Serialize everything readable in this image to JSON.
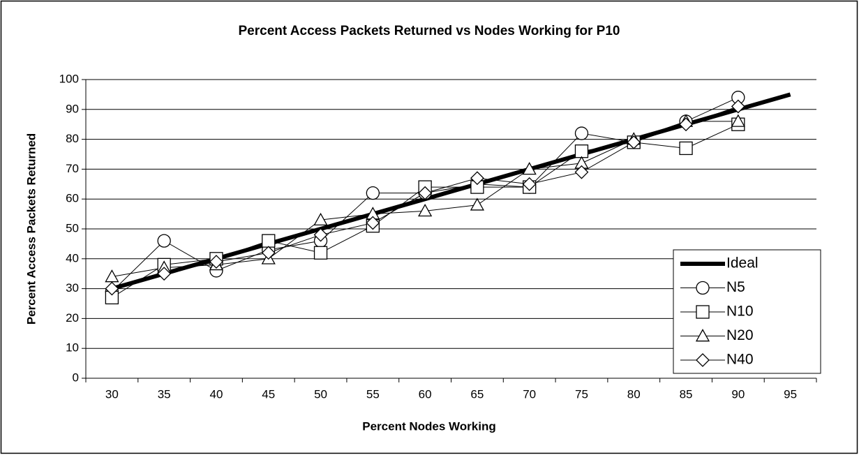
{
  "chart_data": {
    "type": "line",
    "title": "Percent Access Packets Returned vs Nodes Working for P10",
    "x_label": "Percent Nodes Working",
    "y_label": "Percent Access Packets Returned",
    "categories": [
      30,
      35,
      40,
      45,
      50,
      55,
      60,
      65,
      70,
      75,
      80,
      85,
      90,
      95
    ],
    "series": [
      {
        "name": "Ideal",
        "color": "#000000",
        "marker": "none",
        "values": [
          30,
          35,
          40,
          45,
          50,
          55,
          60,
          65,
          70,
          75,
          80,
          85,
          90,
          95
        ]
      },
      {
        "name": "N5",
        "color": "#000000",
        "marker": "circle",
        "values": [
          29,
          46,
          36,
          43,
          46,
          62,
          62,
          65,
          64,
          82,
          79,
          86,
          94,
          null
        ]
      },
      {
        "name": "N10",
        "color": "#000000",
        "marker": "square",
        "values": [
          27,
          38,
          40,
          46,
          42,
          51,
          64,
          64,
          64,
          76,
          79,
          77,
          85,
          null
        ]
      },
      {
        "name": "N20",
        "color": "#000000",
        "marker": "triangle",
        "values": [
          34,
          37,
          38,
          40,
          53,
          55,
          56,
          58,
          70,
          72,
          80,
          86,
          86,
          null
        ]
      },
      {
        "name": "N40",
        "color": "#000000",
        "marker": "diamond",
        "values": [
          30,
          35,
          39,
          42,
          48,
          52,
          62,
          67,
          65,
          69,
          79,
          85,
          91,
          null
        ]
      }
    ],
    "ylim": [
      0,
      100
    ],
    "yticks": [
      0,
      10,
      20,
      30,
      40,
      50,
      60,
      70,
      80,
      90,
      100
    ],
    "grid": true,
    "legend": "lower right"
  }
}
